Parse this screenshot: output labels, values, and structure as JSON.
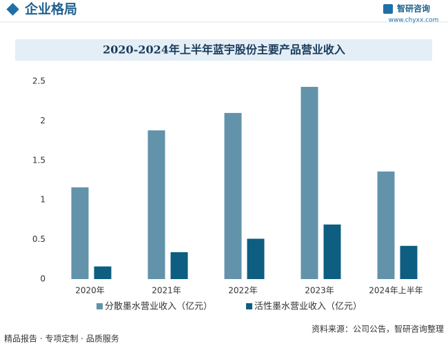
{
  "header": {
    "title": "企业格局",
    "logo": "智研咨询",
    "website": "www.chyxx.com"
  },
  "chart_data": {
    "type": "bar",
    "title": "2020-2024年上半年蓝宇股份主要产品营业收入",
    "categories": [
      "2020年",
      "2021年",
      "2022年",
      "2023年",
      "2024年上半年"
    ],
    "series": [
      {
        "name": "分散墨水营业收入（亿元）",
        "color": "#6393ab",
        "values": [
          1.16,
          1.88,
          2.1,
          2.43,
          1.36
        ]
      },
      {
        "name": "活性墨水营业收入（亿元）",
        "color": "#0d5e80",
        "values": [
          0.16,
          0.34,
          0.51,
          0.69,
          0.42
        ]
      }
    ],
    "ylim": [
      0,
      2.5
    ],
    "yticks": [
      0,
      0.5,
      1,
      1.5,
      2,
      2.5
    ],
    "grid": false,
    "legend": "bottom"
  },
  "footer": {
    "left": "精品报告 · 专项定制 · 品质服务",
    "source": "资料来源：公司公告，智研咨询整理"
  }
}
